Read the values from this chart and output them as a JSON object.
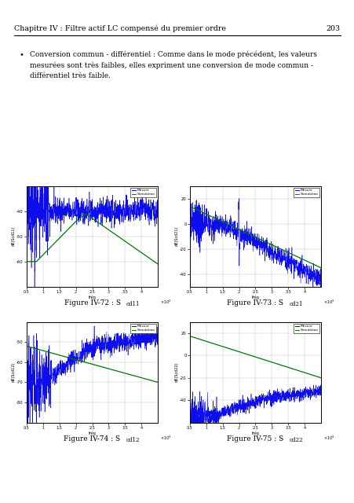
{
  "page_title": "Chapitre IV : Filtre actif LC compensé du premier ordre",
  "page_number": "203",
  "bullet_line1": "Conversion commun - différentiel : Comme dans le mode précédent, les valeurs",
  "bullet_line2": "mesurées sont très faibles, elles expriment une conversion de mode commun -",
  "bullet_line3": "différentiel très faible.",
  "legend_mesure": "Mesure",
  "legend_simu": "Simulation",
  "blue_color": "#0000ee",
  "green_color": "#007700",
  "bg_color": "#ffffff",
  "grid_color": "#999999",
  "fig72_label": "Figure IV-72 : S",
  "fig72_sub": "cd11",
  "fig73_label": "Figure IV-73 : S",
  "fig73_sub": "cd21",
  "fig74_label": "Figure IV-74 : S",
  "fig74_sub": "cd12",
  "fig75_label": "Figure IV-75 : S",
  "fig75_sub": "cd22"
}
